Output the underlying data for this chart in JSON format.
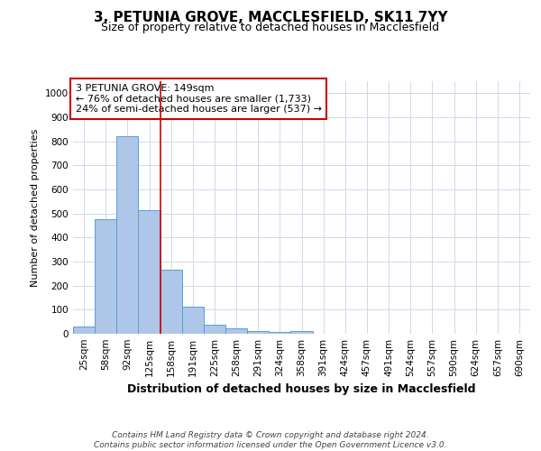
{
  "title1": "3, PETUNIA GROVE, MACCLESFIELD, SK11 7YY",
  "title2": "Size of property relative to detached houses in Macclesfield",
  "xlabel": "Distribution of detached houses by size in Macclesfield",
  "ylabel": "Number of detached properties",
  "categories": [
    "25sqm",
    "58sqm",
    "92sqm",
    "125sqm",
    "158sqm",
    "191sqm",
    "225sqm",
    "258sqm",
    "291sqm",
    "324sqm",
    "358sqm",
    "391sqm",
    "424sqm",
    "457sqm",
    "491sqm",
    "524sqm",
    "557sqm",
    "590sqm",
    "624sqm",
    "657sqm",
    "690sqm"
  ],
  "values": [
    30,
    478,
    820,
    515,
    265,
    112,
    38,
    22,
    12,
    8,
    10,
    0,
    0,
    0,
    0,
    0,
    0,
    0,
    0,
    0,
    0
  ],
  "bar_color": "#aec6e8",
  "bar_edge_color": "#5a9fd4",
  "grid_color": "#d0d8e8",
  "vline_color": "#cc0000",
  "vline_x_index": 3.5,
  "annotation_text": "3 PETUNIA GROVE: 149sqm\n← 76% of detached houses are smaller (1,733)\n24% of semi-detached houses are larger (537) →",
  "annotation_box_color": "#cc0000",
  "footer": "Contains HM Land Registry data © Crown copyright and database right 2024.\nContains public sector information licensed under the Open Government Licence v3.0.",
  "ylim": [
    0,
    1050
  ],
  "yticks": [
    0,
    100,
    200,
    300,
    400,
    500,
    600,
    700,
    800,
    900,
    1000
  ],
  "title1_fontsize": 11,
  "title2_fontsize": 9,
  "xlabel_fontsize": 9,
  "ylabel_fontsize": 8,
  "tick_fontsize": 7.5,
  "footer_fontsize": 6.5,
  "ann_fontsize": 8
}
